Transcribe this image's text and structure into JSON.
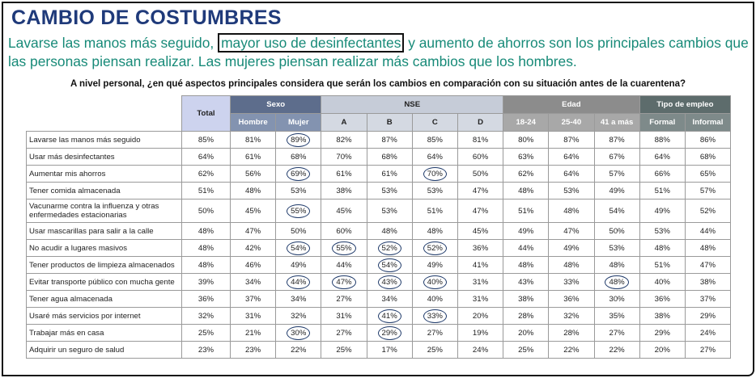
{
  "header": {
    "title": "CAMBIO DE COSTUMBRES",
    "subtitle": {
      "before": "Lavarse las manos más seguido, ",
      "highlight": "mayor uso de desinfectantes",
      "after": " y aumento de ahorros son los principales cambios que las personas piensan realizar. Las mujeres piensan realizar más cambios que los hombres."
    },
    "question": "A nivel personal, ¿en qué aspectos principales considera que serán los cambios en comparación con su situación antes de la cuarentena?"
  },
  "table": {
    "total_label": "Total",
    "groups": [
      {
        "name": "Sexo",
        "columns": [
          "Hombre",
          "Mujer"
        ]
      },
      {
        "name": "NSE",
        "columns": [
          "A",
          "B",
          "C",
          "D"
        ]
      },
      {
        "name": "Edad",
        "columns": [
          "18-24",
          "25-40",
          "41 a más"
        ]
      },
      {
        "name": "Tipo de empleo",
        "columns": [
          "Formal",
          "Informal"
        ]
      }
    ],
    "rows": [
      {
        "label": "Lavarse las manos más seguido",
        "values": [
          "85%",
          "81%",
          "89%",
          "82%",
          "87%",
          "85%",
          "81%",
          "80%",
          "87%",
          "87%",
          "88%",
          "86%"
        ],
        "circled": [
          2
        ]
      },
      {
        "label": "Usar más desinfectantes",
        "values": [
          "64%",
          "61%",
          "68%",
          "70%",
          "68%",
          "64%",
          "60%",
          "63%",
          "64%",
          "67%",
          "64%",
          "68%"
        ],
        "circled": []
      },
      {
        "label": "Aumentar mis ahorros",
        "values": [
          "62%",
          "56%",
          "69%",
          "61%",
          "61%",
          "70%",
          "50%",
          "62%",
          "64%",
          "57%",
          "66%",
          "65%"
        ],
        "circled": [
          2,
          5
        ]
      },
      {
        "label": "Tener comida almacenada",
        "values": [
          "51%",
          "48%",
          "53%",
          "38%",
          "53%",
          "53%",
          "47%",
          "48%",
          "53%",
          "49%",
          "51%",
          "57%"
        ],
        "circled": []
      },
      {
        "label": "Vacunarme contra la influenza y otras enfermedades estacionarias",
        "values": [
          "50%",
          "45%",
          "55%",
          "45%",
          "53%",
          "51%",
          "47%",
          "51%",
          "48%",
          "54%",
          "49%",
          "52%"
        ],
        "circled": [
          2
        ]
      },
      {
        "label": "Usar mascarillas para salir a la calle",
        "values": [
          "48%",
          "47%",
          "50%",
          "60%",
          "48%",
          "48%",
          "45%",
          "49%",
          "47%",
          "50%",
          "53%",
          "44%"
        ],
        "circled": []
      },
      {
        "label": "No acudir a lugares masivos",
        "values": [
          "48%",
          "42%",
          "54%",
          "55%",
          "52%",
          "52%",
          "36%",
          "44%",
          "49%",
          "53%",
          "48%",
          "48%"
        ],
        "circled": [
          2,
          3,
          4,
          5
        ]
      },
      {
        "label": "Tener productos de limpieza almacenados",
        "values": [
          "48%",
          "46%",
          "49%",
          "44%",
          "54%",
          "49%",
          "41%",
          "48%",
          "48%",
          "48%",
          "51%",
          "47%"
        ],
        "circled": [
          4
        ]
      },
      {
        "label": "Evitar transporte público con mucha gente",
        "values": [
          "39%",
          "34%",
          "44%",
          "47%",
          "43%",
          "40%",
          "31%",
          "43%",
          "33%",
          "48%",
          "40%",
          "38%"
        ],
        "circled": [
          2,
          3,
          4,
          5,
          9
        ]
      },
      {
        "label": "Tener agua almacenada",
        "values": [
          "36%",
          "37%",
          "34%",
          "27%",
          "34%",
          "40%",
          "31%",
          "38%",
          "36%",
          "30%",
          "36%",
          "37%"
        ],
        "circled": []
      },
      {
        "label": "Usaré más servicios por internet",
        "values": [
          "32%",
          "31%",
          "32%",
          "31%",
          "41%",
          "33%",
          "20%",
          "28%",
          "32%",
          "35%",
          "38%",
          "29%"
        ],
        "circled": [
          4,
          5
        ]
      },
      {
        "label": "Trabajar más en casa",
        "values": [
          "25%",
          "21%",
          "30%",
          "27%",
          "29%",
          "27%",
          "19%",
          "20%",
          "28%",
          "27%",
          "29%",
          "24%"
        ],
        "circled": [
          2,
          4
        ]
      },
      {
        "label": "Adquirir un seguro de salud",
        "values": [
          "23%",
          "23%",
          "22%",
          "25%",
          "17%",
          "25%",
          "24%",
          "25%",
          "22%",
          "22%",
          "20%",
          "27%"
        ],
        "circled": []
      }
    ]
  }
}
